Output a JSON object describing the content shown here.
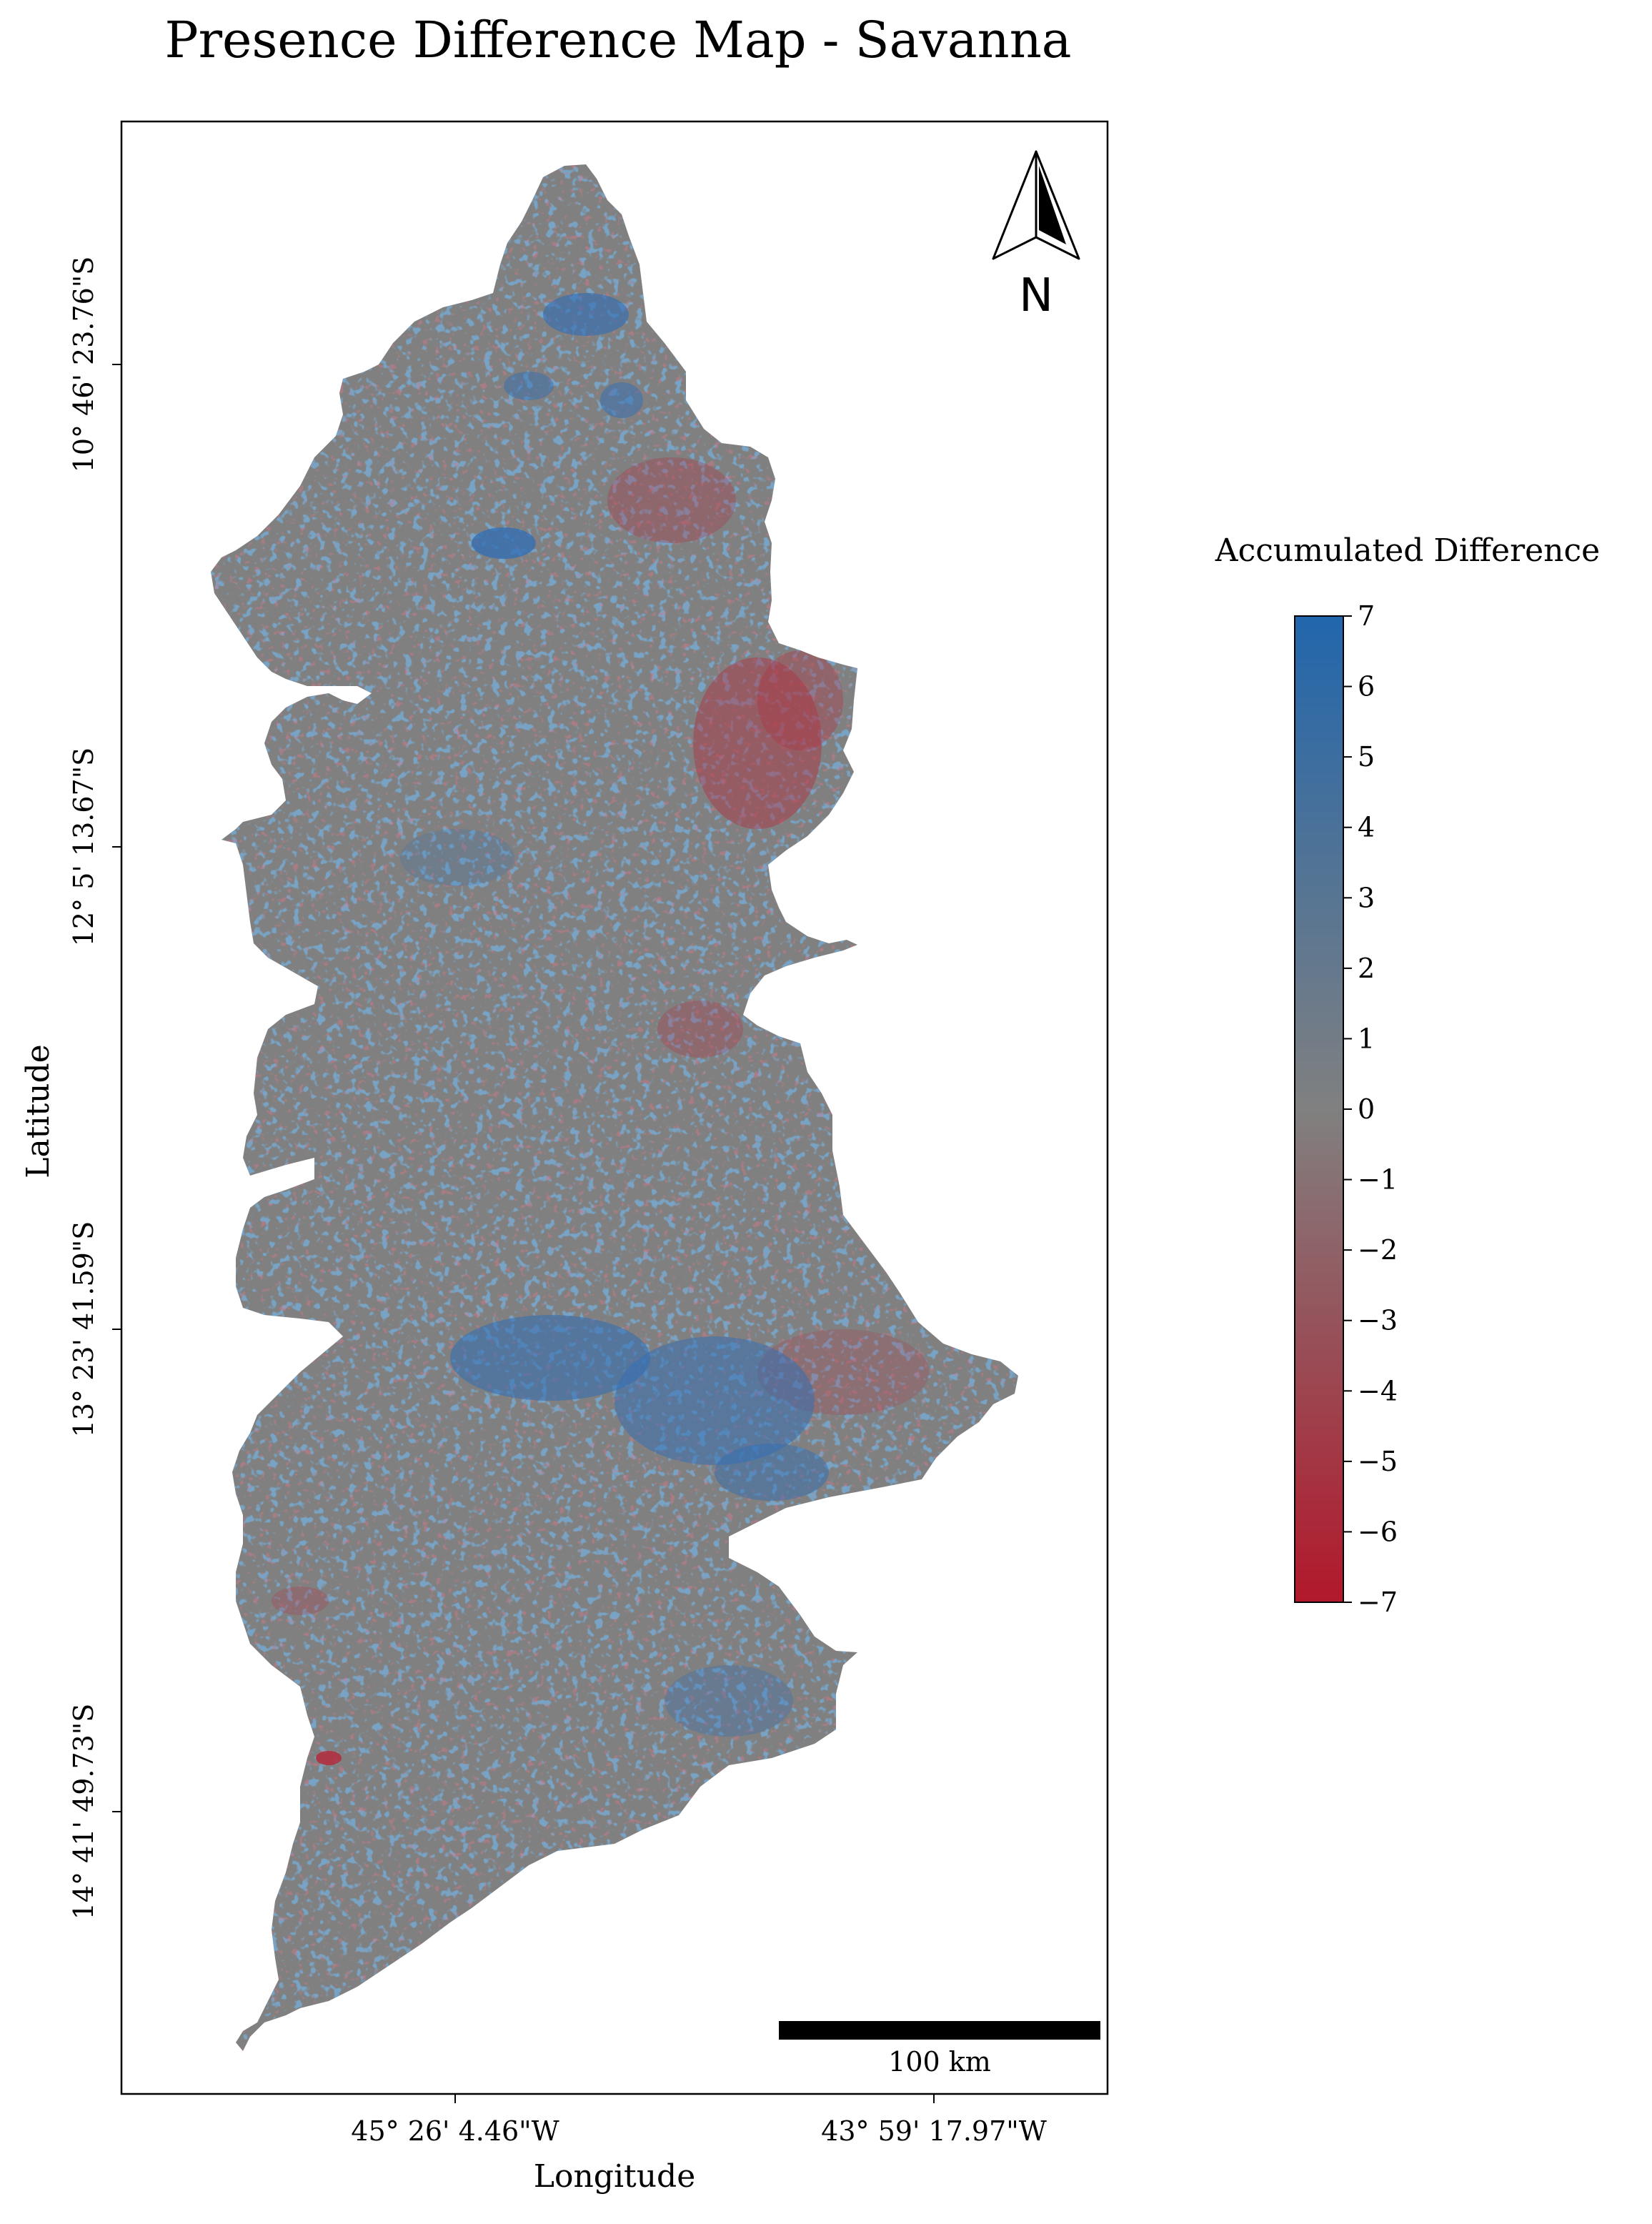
{
  "title": "Presence Difference Map - Savanna",
  "axes": {
    "xlabel": "Longitude",
    "ylabel": "Latitude",
    "xticks": [
      "45° 26' 4.46\"W",
      "43° 59' 17.97\"W"
    ],
    "yticks": [
      "10° 46' 23.76\"S",
      "12° 5' 13.67\"S",
      "13° 23' 41.59\"S",
      "14° 41' 49.73\"S"
    ]
  },
  "north_arrow": {
    "letter": "N"
  },
  "scale_bar": {
    "label": "100 km"
  },
  "colorbar": {
    "label": "Accumulated Difference",
    "min": -7,
    "max": 7,
    "ticks": [
      "7",
      "6",
      "5",
      "4",
      "3",
      "2",
      "1",
      "0",
      "−1",
      "−2",
      "−3",
      "−4",
      "−5",
      "−6",
      "−7"
    ],
    "colors": {
      "low": "#b2182b",
      "mid": "#808080",
      "high": "#2166ac"
    }
  },
  "colors": {
    "base": "#808080",
    "positive": "#2f6db5",
    "negative": "#b03040"
  }
}
